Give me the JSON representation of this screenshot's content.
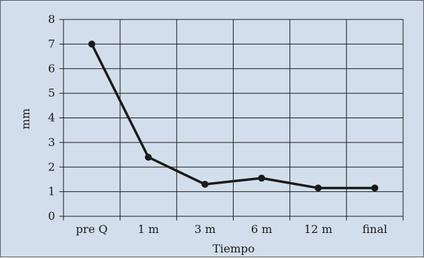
{
  "chart_data": {
    "type": "line",
    "title": "",
    "xlabel": "Tiempo",
    "ylabel": "mm",
    "categories": [
      "pre Q",
      "1 m",
      "3 m",
      "6 m",
      "12 m",
      "final"
    ],
    "series": [
      {
        "values": [
          7.0,
          2.4,
          1.3,
          1.55,
          1.15,
          1.15
        ]
      }
    ],
    "ylim": [
      0,
      8
    ],
    "yticks": [
      0,
      1,
      2,
      3,
      4,
      5,
      6,
      7,
      8
    ],
    "grid": true,
    "legend": "none",
    "colors": {
      "background": "#d3deec",
      "line": "#1a1a1a",
      "grid": "#1a1a1a"
    }
  }
}
